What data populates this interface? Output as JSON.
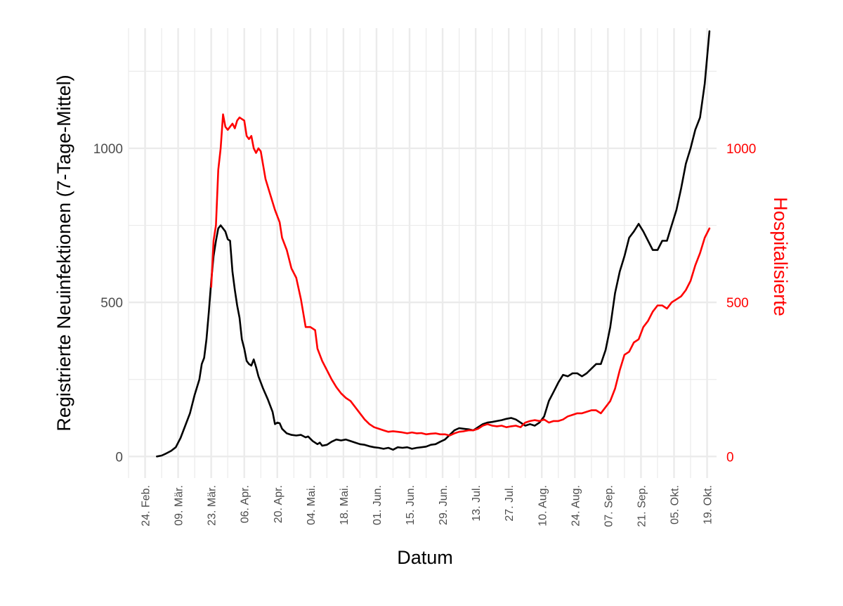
{
  "chart_data": {
    "type": "line",
    "xlabel": "Datum",
    "ylabel": "Registrierte Neuinfektionen (7-Tage-Mittel)",
    "y2label": "Hospitalisierte",
    "ylim": [
      -70,
      1390
    ],
    "yticks": [
      0,
      500,
      1000
    ],
    "y_minor_ticks": [
      250,
      750,
      1250
    ],
    "x_ticks": [
      {
        "date": "2020-02-24",
        "label": "24. Feb."
      },
      {
        "date": "2020-03-09",
        "label": "09. Mär."
      },
      {
        "date": "2020-03-23",
        "label": "23. Mär."
      },
      {
        "date": "2020-04-06",
        "label": "06. Apr."
      },
      {
        "date": "2020-04-20",
        "label": "20. Apr."
      },
      {
        "date": "2020-05-04",
        "label": "04. Mai."
      },
      {
        "date": "2020-05-18",
        "label": "18. Mai."
      },
      {
        "date": "2020-06-01",
        "label": "01. Jun."
      },
      {
        "date": "2020-06-15",
        "label": "15. Jun."
      },
      {
        "date": "2020-06-29",
        "label": "29. Jun."
      },
      {
        "date": "2020-07-13",
        "label": "13. Jul."
      },
      {
        "date": "2020-07-27",
        "label": "27. Jul."
      },
      {
        "date": "2020-08-10",
        "label": "10. Aug."
      },
      {
        "date": "2020-08-24",
        "label": "24. Aug."
      },
      {
        "date": "2020-09-07",
        "label": "07. Sep."
      },
      {
        "date": "2020-09-21",
        "label": "21. Sep."
      },
      {
        "date": "2020-10-05",
        "label": "05. Okt."
      },
      {
        "date": "2020-10-19",
        "label": "19. Okt."
      }
    ],
    "xlim": [
      "2020-02-17",
      "2020-10-23"
    ],
    "grid": true,
    "series": [
      {
        "color": "#000000",
        "axis": "left",
        "points": [
          [
            "2020-02-29",
            0
          ],
          [
            "2020-03-02",
            3
          ],
          [
            "2020-03-04",
            10
          ],
          [
            "2020-03-06",
            18
          ],
          [
            "2020-03-08",
            30
          ],
          [
            "2020-03-10",
            60
          ],
          [
            "2020-03-12",
            100
          ],
          [
            "2020-03-14",
            140
          ],
          [
            "2020-03-16",
            200
          ],
          [
            "2020-03-18",
            250
          ],
          [
            "2020-03-19",
            300
          ],
          [
            "2020-03-20",
            320
          ],
          [
            "2020-03-21",
            380
          ],
          [
            "2020-03-22",
            470
          ],
          [
            "2020-03-23",
            570
          ],
          [
            "2020-03-24",
            650
          ],
          [
            "2020-03-25",
            700
          ],
          [
            "2020-03-26",
            740
          ],
          [
            "2020-03-27",
            750
          ],
          [
            "2020-03-28",
            740
          ],
          [
            "2020-03-29",
            730
          ],
          [
            "2020-03-30",
            705
          ],
          [
            "2020-03-31",
            700
          ],
          [
            "2020-04-01",
            600
          ],
          [
            "2020-04-02",
            540
          ],
          [
            "2020-04-03",
            490
          ],
          [
            "2020-04-04",
            450
          ],
          [
            "2020-04-05",
            380
          ],
          [
            "2020-04-06",
            350
          ],
          [
            "2020-04-07",
            310
          ],
          [
            "2020-04-08",
            300
          ],
          [
            "2020-04-09",
            295
          ],
          [
            "2020-04-10",
            315
          ],
          [
            "2020-04-11",
            290
          ],
          [
            "2020-04-12",
            260
          ],
          [
            "2020-04-14",
            220
          ],
          [
            "2020-04-16",
            185
          ],
          [
            "2020-04-18",
            145
          ],
          [
            "2020-04-19",
            105
          ],
          [
            "2020-04-20",
            110
          ],
          [
            "2020-04-21",
            108
          ],
          [
            "2020-04-22",
            90
          ],
          [
            "2020-04-24",
            75
          ],
          [
            "2020-04-26",
            70
          ],
          [
            "2020-04-28",
            68
          ],
          [
            "2020-04-30",
            70
          ],
          [
            "2020-05-02",
            62
          ],
          [
            "2020-05-03",
            65
          ],
          [
            "2020-05-05",
            50
          ],
          [
            "2020-05-07",
            40
          ],
          [
            "2020-05-08",
            45
          ],
          [
            "2020-05-09",
            35
          ],
          [
            "2020-05-11",
            38
          ],
          [
            "2020-05-13",
            48
          ],
          [
            "2020-05-15",
            55
          ],
          [
            "2020-05-17",
            52
          ],
          [
            "2020-05-19",
            55
          ],
          [
            "2020-05-21",
            50
          ],
          [
            "2020-05-23",
            45
          ],
          [
            "2020-05-25",
            40
          ],
          [
            "2020-05-27",
            38
          ],
          [
            "2020-05-29",
            33
          ],
          [
            "2020-05-31",
            30
          ],
          [
            "2020-06-02",
            28
          ],
          [
            "2020-06-04",
            25
          ],
          [
            "2020-06-06",
            28
          ],
          [
            "2020-06-08",
            22
          ],
          [
            "2020-06-10",
            30
          ],
          [
            "2020-06-12",
            28
          ],
          [
            "2020-06-14",
            30
          ],
          [
            "2020-06-16",
            25
          ],
          [
            "2020-06-18",
            28
          ],
          [
            "2020-06-20",
            30
          ],
          [
            "2020-06-22",
            32
          ],
          [
            "2020-06-24",
            38
          ],
          [
            "2020-06-26",
            40
          ],
          [
            "2020-06-28",
            48
          ],
          [
            "2020-06-30",
            55
          ],
          [
            "2020-07-02",
            70
          ],
          [
            "2020-07-04",
            85
          ],
          [
            "2020-07-06",
            92
          ],
          [
            "2020-07-08",
            90
          ],
          [
            "2020-07-10",
            88
          ],
          [
            "2020-07-12",
            85
          ],
          [
            "2020-07-14",
            95
          ],
          [
            "2020-07-16",
            105
          ],
          [
            "2020-07-18",
            110
          ],
          [
            "2020-07-20",
            112
          ],
          [
            "2020-07-22",
            115
          ],
          [
            "2020-07-24",
            118
          ],
          [
            "2020-07-26",
            122
          ],
          [
            "2020-07-28",
            125
          ],
          [
            "2020-07-30",
            120
          ],
          [
            "2020-08-01",
            110
          ],
          [
            "2020-08-03",
            100
          ],
          [
            "2020-08-05",
            105
          ],
          [
            "2020-08-07",
            100
          ],
          [
            "2020-08-09",
            110
          ],
          [
            "2020-08-11",
            130
          ],
          [
            "2020-08-13",
            180
          ],
          [
            "2020-08-15",
            210
          ],
          [
            "2020-08-17",
            240
          ],
          [
            "2020-08-19",
            265
          ],
          [
            "2020-08-21",
            260
          ],
          [
            "2020-08-23",
            270
          ],
          [
            "2020-08-25",
            270
          ],
          [
            "2020-08-27",
            260
          ],
          [
            "2020-08-29",
            270
          ],
          [
            "2020-08-31",
            285
          ],
          [
            "2020-09-02",
            300
          ],
          [
            "2020-09-04",
            300
          ],
          [
            "2020-09-06",
            345
          ],
          [
            "2020-09-08",
            420
          ],
          [
            "2020-09-10",
            530
          ],
          [
            "2020-09-12",
            600
          ],
          [
            "2020-09-14",
            650
          ],
          [
            "2020-09-16",
            710
          ],
          [
            "2020-09-18",
            730
          ],
          [
            "2020-09-20",
            755
          ],
          [
            "2020-09-22",
            730
          ],
          [
            "2020-09-24",
            700
          ],
          [
            "2020-09-26",
            670
          ],
          [
            "2020-09-28",
            670
          ],
          [
            "2020-09-30",
            700
          ],
          [
            "2020-10-02",
            700
          ],
          [
            "2020-10-04",
            750
          ],
          [
            "2020-10-06",
            800
          ],
          [
            "2020-10-08",
            870
          ],
          [
            "2020-10-10",
            950
          ],
          [
            "2020-10-12",
            1000
          ],
          [
            "2020-10-14",
            1060
          ],
          [
            "2020-10-16",
            1100
          ],
          [
            "2020-10-18",
            1210
          ],
          [
            "2020-10-20",
            1380
          ]
        ]
      },
      {
        "color": "#ff0000",
        "axis": "right",
        "points": [
          [
            "2020-03-23",
            550
          ],
          [
            "2020-03-24",
            700
          ],
          [
            "2020-03-25",
            750
          ],
          [
            "2020-03-26",
            930
          ],
          [
            "2020-03-27",
            1000
          ],
          [
            "2020-03-28",
            1110
          ],
          [
            "2020-03-29",
            1070
          ],
          [
            "2020-03-30",
            1060
          ],
          [
            "2020-03-31",
            1070
          ],
          [
            "2020-04-01",
            1080
          ],
          [
            "2020-04-02",
            1065
          ],
          [
            "2020-04-03",
            1090
          ],
          [
            "2020-04-04",
            1100
          ],
          [
            "2020-04-05",
            1095
          ],
          [
            "2020-04-06",
            1090
          ],
          [
            "2020-04-07",
            1040
          ],
          [
            "2020-04-08",
            1030
          ],
          [
            "2020-04-09",
            1040
          ],
          [
            "2020-04-10",
            1000
          ],
          [
            "2020-04-11",
            985
          ],
          [
            "2020-04-12",
            1000
          ],
          [
            "2020-04-13",
            990
          ],
          [
            "2020-04-15",
            900
          ],
          [
            "2020-04-17",
            850
          ],
          [
            "2020-04-19",
            800
          ],
          [
            "2020-04-21",
            760
          ],
          [
            "2020-04-22",
            710
          ],
          [
            "2020-04-24",
            670
          ],
          [
            "2020-04-26",
            610
          ],
          [
            "2020-04-28",
            580
          ],
          [
            "2020-04-30",
            510
          ],
          [
            "2020-05-02",
            420
          ],
          [
            "2020-05-04",
            420
          ],
          [
            "2020-05-06",
            410
          ],
          [
            "2020-05-07",
            350
          ],
          [
            "2020-05-09",
            310
          ],
          [
            "2020-05-11",
            280
          ],
          [
            "2020-05-13",
            250
          ],
          [
            "2020-05-15",
            225
          ],
          [
            "2020-05-17",
            205
          ],
          [
            "2020-05-19",
            190
          ],
          [
            "2020-05-21",
            180
          ],
          [
            "2020-05-23",
            160
          ],
          [
            "2020-05-25",
            140
          ],
          [
            "2020-05-27",
            120
          ],
          [
            "2020-05-29",
            105
          ],
          [
            "2020-05-31",
            95
          ],
          [
            "2020-06-02",
            90
          ],
          [
            "2020-06-04",
            85
          ],
          [
            "2020-06-06",
            80
          ],
          [
            "2020-06-08",
            82
          ],
          [
            "2020-06-10",
            80
          ],
          [
            "2020-06-12",
            78
          ],
          [
            "2020-06-14",
            75
          ],
          [
            "2020-06-16",
            78
          ],
          [
            "2020-06-18",
            75
          ],
          [
            "2020-06-20",
            76
          ],
          [
            "2020-06-22",
            72
          ],
          [
            "2020-06-24",
            74
          ],
          [
            "2020-06-26",
            75
          ],
          [
            "2020-06-28",
            72
          ],
          [
            "2020-06-30",
            72
          ],
          [
            "2020-07-02",
            68
          ],
          [
            "2020-07-04",
            75
          ],
          [
            "2020-07-06",
            80
          ],
          [
            "2020-07-08",
            82
          ],
          [
            "2020-07-10",
            85
          ],
          [
            "2020-07-12",
            85
          ],
          [
            "2020-07-14",
            90
          ],
          [
            "2020-07-16",
            100
          ],
          [
            "2020-07-18",
            105
          ],
          [
            "2020-07-20",
            100
          ],
          [
            "2020-07-22",
            98
          ],
          [
            "2020-07-24",
            100
          ],
          [
            "2020-07-26",
            95
          ],
          [
            "2020-07-28",
            98
          ],
          [
            "2020-07-30",
            100
          ],
          [
            "2020-08-01",
            95
          ],
          [
            "2020-08-03",
            110
          ],
          [
            "2020-08-05",
            115
          ],
          [
            "2020-08-07",
            118
          ],
          [
            "2020-08-09",
            115
          ],
          [
            "2020-08-11",
            120
          ],
          [
            "2020-08-13",
            110
          ],
          [
            "2020-08-15",
            115
          ],
          [
            "2020-08-17",
            115
          ],
          [
            "2020-08-19",
            120
          ],
          [
            "2020-08-21",
            130
          ],
          [
            "2020-08-23",
            135
          ],
          [
            "2020-08-25",
            140
          ],
          [
            "2020-08-27",
            140
          ],
          [
            "2020-08-29",
            145
          ],
          [
            "2020-08-31",
            150
          ],
          [
            "2020-09-02",
            150
          ],
          [
            "2020-09-04",
            140
          ],
          [
            "2020-09-06",
            160
          ],
          [
            "2020-09-08",
            180
          ],
          [
            "2020-09-10",
            220
          ],
          [
            "2020-09-12",
            280
          ],
          [
            "2020-09-14",
            330
          ],
          [
            "2020-09-16",
            340
          ],
          [
            "2020-09-18",
            370
          ],
          [
            "2020-09-20",
            380
          ],
          [
            "2020-09-22",
            420
          ],
          [
            "2020-09-24",
            440
          ],
          [
            "2020-09-26",
            470
          ],
          [
            "2020-09-28",
            490
          ],
          [
            "2020-09-30",
            490
          ],
          [
            "2020-10-02",
            480
          ],
          [
            "2020-10-04",
            500
          ],
          [
            "2020-10-06",
            510
          ],
          [
            "2020-10-08",
            520
          ],
          [
            "2020-10-10",
            540
          ],
          [
            "2020-10-12",
            570
          ],
          [
            "2020-10-14",
            620
          ],
          [
            "2020-10-16",
            660
          ],
          [
            "2020-10-18",
            710
          ],
          [
            "2020-10-20",
            740
          ]
        ]
      }
    ]
  }
}
